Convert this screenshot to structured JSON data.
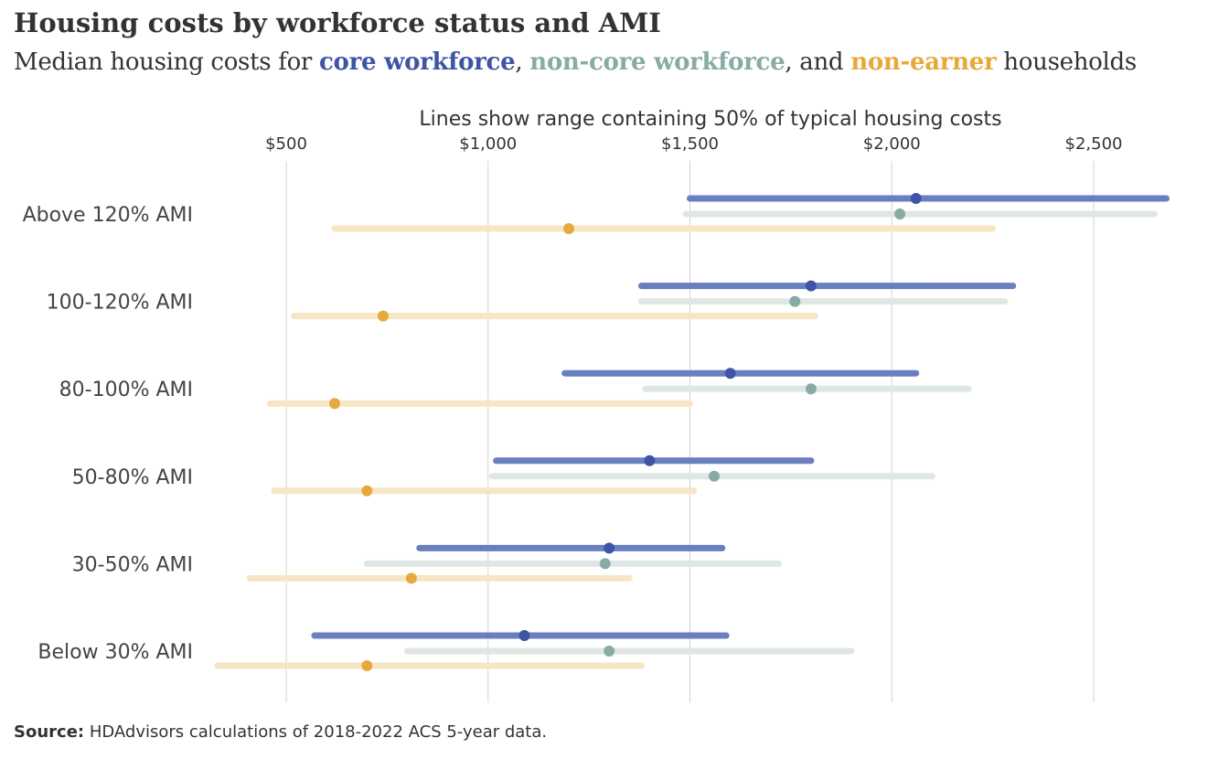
{
  "title": "Housing costs by workforce status and AMI",
  "subtitle": {
    "prefix": "Median housing costs for ",
    "series1": "core workforce",
    "sep1": ", ",
    "series2": "non-core workforce",
    "sep2": ", and ",
    "series3": "non-earner",
    "suffix": " households"
  },
  "source": {
    "label": "Source:",
    "text": " HDAdvisors calculations of 2018-2022 ACS 5-year data."
  },
  "colors": {
    "core": "#3e55a6",
    "core_line": "#6a7fbf",
    "noncore": "#88aba5",
    "noncore_line": "#dfe7e4",
    "nonearner": "#e8a93c",
    "nonearner_line": "#f7e6c5",
    "grid": "#d3d3d3",
    "text": "#333333"
  },
  "chart_data": {
    "type": "range-dot",
    "axis_title": "Lines show range containing 50% of typical housing costs",
    "x_ticks": [
      {
        "value": 500,
        "label": "$500"
      },
      {
        "value": 1000,
        "label": "$1,000"
      },
      {
        "value": 1500,
        "label": "$1,500"
      },
      {
        "value": 2000,
        "label": "$2,000"
      },
      {
        "value": 2500,
        "label": "$2,500"
      }
    ],
    "xlim": [
      330,
      2700
    ],
    "grid": true,
    "categories": [
      "Above 120% AMI",
      "100-120% AMI",
      "80-100% AMI",
      "50-80% AMI",
      "30-50% AMI",
      "Below 30% AMI"
    ],
    "series": [
      {
        "name": "core workforce",
        "low": [
          1500,
          1380,
          1190,
          1020,
          830,
          570
        ],
        "median": [
          2060,
          1800,
          1600,
          1400,
          1300,
          1090
        ],
        "high": [
          2680,
          2300,
          2060,
          1800,
          1580,
          1590
        ]
      },
      {
        "name": "non-core workforce",
        "low": [
          1490,
          1380,
          1390,
          1010,
          700,
          800
        ],
        "median": [
          2020,
          1760,
          1800,
          1560,
          1290,
          1300
        ],
        "high": [
          2650,
          2280,
          2190,
          2100,
          1720,
          1900
        ]
      },
      {
        "name": "non-earner",
        "low": [
          620,
          520,
          460,
          470,
          410,
          330
        ],
        "median": [
          1200,
          740,
          620,
          700,
          810,
          700
        ],
        "high": [
          2250,
          1810,
          1500,
          1510,
          1350,
          1380
        ]
      }
    ]
  }
}
